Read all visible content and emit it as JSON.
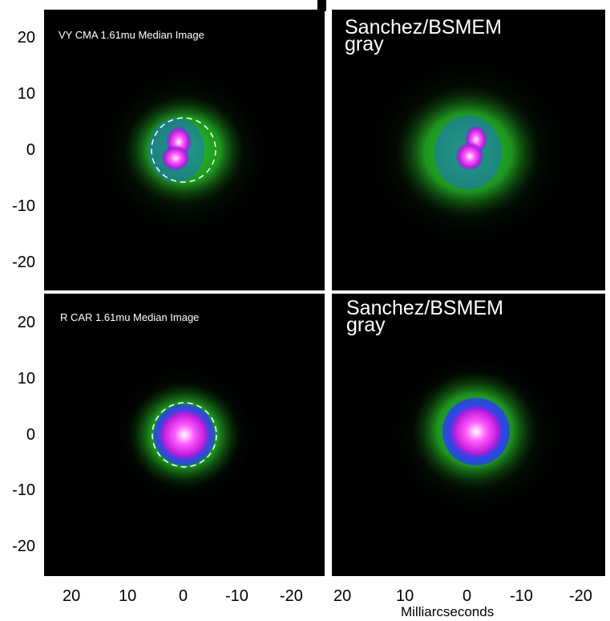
{
  "panels": {
    "top_left_label": "VY CMA 1.61mu Median Image",
    "top_right_label": "Sanchez/BSMEM\ngray",
    "bottom_left_label": "R CAR 1.61mu Median Image",
    "bottom_right_label": "Sanchez/BSMEM\ngray"
  },
  "y_ticks_top": [
    "20",
    "10",
    "0",
    "-10",
    "-20"
  ],
  "y_ticks_bottom": [
    "20",
    "10",
    "0",
    "-10",
    "-20"
  ],
  "x_ticks_left": [
    "20",
    "10",
    "0",
    "-10",
    "-20"
  ],
  "x_ticks_right": [
    "20",
    "10",
    "0",
    "-10",
    "-20"
  ],
  "x_axis_label": "Milliarcseconds",
  "colors": {
    "background": "#000000",
    "halo": "#2bd12b",
    "core": "#ff2aff",
    "peak": "#ffffff",
    "mid": "#2a3cff"
  }
}
